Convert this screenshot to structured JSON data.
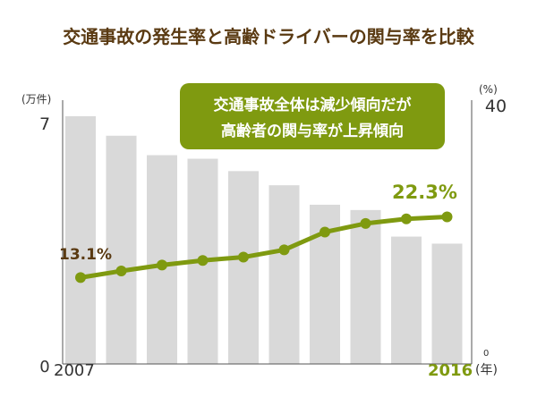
{
  "chart_data": {
    "type": "bar+line",
    "title": "交通事故の発生率と高齢ドライバーの関与率を比較",
    "x": [
      "2007",
      "",
      "",
      "",
      "",
      "",
      "",
      "",
      "",
      "2016"
    ],
    "x_start_label": "2007",
    "x_end_label": "2016",
    "x_unit": "(年)",
    "y_left": {
      "unit": "(万件)",
      "ticks": [
        "0",
        "7"
      ],
      "range": [
        0,
        7
      ]
    },
    "y_right": {
      "unit": "(%)",
      "ticks": [
        "0",
        "40"
      ],
      "range": [
        0,
        40
      ]
    },
    "series": [
      {
        "type": "bar",
        "axis": "left",
        "values": [
          7.0,
          6.45,
          5.9,
          5.8,
          5.45,
          5.05,
          4.5,
          4.35,
          3.6,
          3.4
        ]
      },
      {
        "type": "line",
        "axis": "right",
        "values": [
          13.1,
          14.1,
          15.0,
          15.7,
          16.2,
          17.3,
          20.0,
          21.3,
          22.0,
          22.3
        ]
      }
    ],
    "data_labels": {
      "first": "13.1%",
      "last": "22.3%"
    },
    "annotation": [
      "交通事故全体は減少傾向だが",
      "高齢者の関与率が上昇傾向"
    ],
    "grid": false,
    "colors": {
      "title": "#5a3a12",
      "bar": "#d9d9d9",
      "line": "#7f9a10",
      "first_label": "#5a3a12",
      "last_label": "#7f9a10",
      "annotation_bg": "#7f9a10",
      "annotation_text": "#ffffff",
      "axis": "#555555",
      "axis_text": "#333333"
    }
  }
}
